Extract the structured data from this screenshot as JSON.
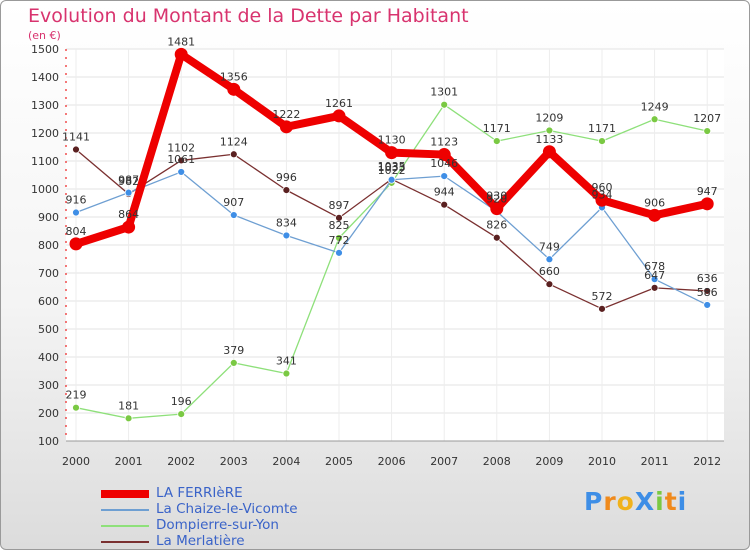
{
  "header": {
    "title": "Evolution du Montant de la Dette par Habitant",
    "subtitle": "(en €)"
  },
  "logo": {
    "text": "ProXiti",
    "letters": [
      "P",
      "r",
      "o",
      "X",
      "i",
      "t",
      "i"
    ],
    "colors": [
      "#3e8ee6",
      "#f08a1c",
      "#f0b21c",
      "#3e8ee6",
      "#7ac943",
      "#f08a1c",
      "#3e8ee6"
    ]
  },
  "chart_data": {
    "type": "line",
    "title": "Evolution du Montant de la Dette par Habitant",
    "subtitle": "(en €)",
    "xlabel": "",
    "ylabel": "",
    "x": [
      "2000",
      "2001",
      "2002",
      "2003",
      "2004",
      "2005",
      "2006",
      "2007",
      "2008",
      "2009",
      "2010",
      "2011",
      "2012"
    ],
    "ylim": [
      100,
      1500
    ],
    "yticks": [
      100,
      200,
      300,
      400,
      500,
      600,
      700,
      800,
      900,
      1000,
      1100,
      1200,
      1300,
      1400,
      1500
    ],
    "grid": true,
    "legend_position": "bottom-left",
    "series": [
      {
        "name": "LA FERRIèRE",
        "color": "#ee0000",
        "width": 8,
        "values": [
          804,
          864,
          1481,
          1356,
          1222,
          1261,
          1130,
          1123,
          930,
          1133,
          960,
          906,
          947
        ]
      },
      {
        "name": "La Chaize-le-Vicomte",
        "color": "#6e9fd2",
        "width": 1.3,
        "marker": "#3e8ee6",
        "values": [
          916,
          987,
          1061,
          907,
          834,
          772,
          1033,
          1046,
          920,
          749,
          934,
          678,
          586
        ]
      },
      {
        "name": "Dompierre-sur-Yon",
        "color": "#8ee07a",
        "width": 1.3,
        "marker": "#7ac943",
        "values": [
          219,
          181,
          196,
          379,
          341,
          825,
          1022,
          1301,
          1171,
          1209,
          1171,
          1249,
          1207
        ]
      },
      {
        "name": "La Merlatière",
        "color": "#7a3030",
        "width": 1.3,
        "marker": "#5a2020",
        "values": [
          1141,
          982,
          1102,
          1124,
          996,
          897,
          1035,
          944,
          826,
          660,
          572,
          647,
          636
        ]
      }
    ]
  }
}
